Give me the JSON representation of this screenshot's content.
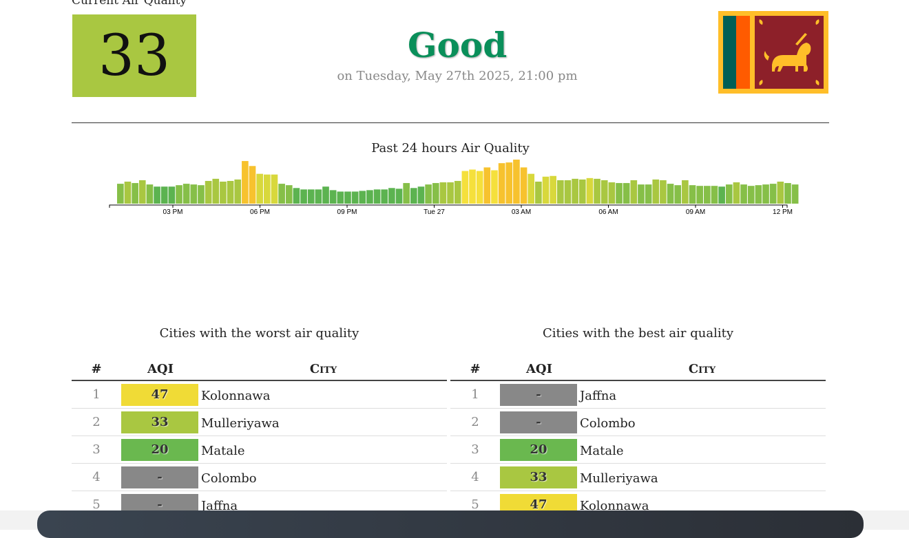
{
  "header": {
    "heading": "Current Air Quality",
    "aqi_value": "33",
    "status": "Good",
    "date_text": "on Tuesday, May 27th 2025, 21:00 pm"
  },
  "colors": {
    "good": "#6ab84f",
    "moderate_low": "#a9c741",
    "moderate": "#f0db36",
    "unhealthy_sensitive": "#f7c22e",
    "no_data": "#888888",
    "status_text": "#0a8f5a"
  },
  "flag": {
    "name": "sri-lanka-flag"
  },
  "chart_data": {
    "type": "bar",
    "title": "Past 24 hours Air Quality",
    "x_tick_labels": [
      "03 PM",
      "06 PM",
      "09 PM",
      "Tue 27",
      "03 AM",
      "06 AM",
      "09 AM",
      "12 PM"
    ],
    "values": [
      28,
      31,
      29,
      33,
      27,
      24,
      24,
      24,
      26,
      28,
      27,
      26,
      32,
      35,
      31,
      32,
      34,
      60,
      53,
      42,
      41,
      41,
      28,
      26,
      22,
      20,
      20,
      20,
      24,
      19,
      17,
      17,
      17,
      18,
      19,
      20,
      20,
      22,
      21,
      29,
      22,
      24,
      27,
      29,
      30,
      30,
      32,
      46,
      48,
      46,
      51,
      47,
      57,
      58,
      62,
      51,
      42,
      31,
      38,
      39,
      33,
      33,
      35,
      34,
      36,
      35,
      33,
      30,
      29,
      29,
      33,
      27,
      27,
      34,
      33,
      28,
      26,
      33,
      26,
      25,
      25,
      25,
      24,
      27,
      30,
      27,
      25,
      26,
      27,
      28,
      31,
      29,
      27
    ],
    "ylim": [
      0,
      62
    ]
  },
  "worst_table": {
    "title": "Cities with the worst air quality",
    "headers": {
      "rank": "#",
      "aqi": "AQI",
      "city": "City"
    },
    "rows": [
      {
        "rank": "1",
        "aqi": "47",
        "city": "Kolonnawa",
        "color": "#f0db36"
      },
      {
        "rank": "2",
        "aqi": "33",
        "city": "Mulleriyawa",
        "color": "#a9c741"
      },
      {
        "rank": "3",
        "aqi": "20",
        "city": "Matale",
        "color": "#6ab84f"
      },
      {
        "rank": "4",
        "aqi": "-",
        "city": "Colombo",
        "color": "#888888"
      },
      {
        "rank": "5",
        "aqi": "-",
        "city": "Jaffna",
        "color": "#888888"
      }
    ]
  },
  "best_table": {
    "title": "Cities with the best air quality",
    "headers": {
      "rank": "#",
      "aqi": "AQI",
      "city": "City"
    },
    "rows": [
      {
        "rank": "1",
        "aqi": "-",
        "city": "Jaffna",
        "color": "#888888"
      },
      {
        "rank": "2",
        "aqi": "-",
        "city": "Colombo",
        "color": "#888888"
      },
      {
        "rank": "3",
        "aqi": "20",
        "city": "Matale",
        "color": "#6ab84f"
      },
      {
        "rank": "4",
        "aqi": "33",
        "city": "Mulleriyawa",
        "color": "#a9c741"
      },
      {
        "rank": "5",
        "aqi": "47",
        "city": "Kolonnawa",
        "color": "#f0db36"
      }
    ]
  }
}
